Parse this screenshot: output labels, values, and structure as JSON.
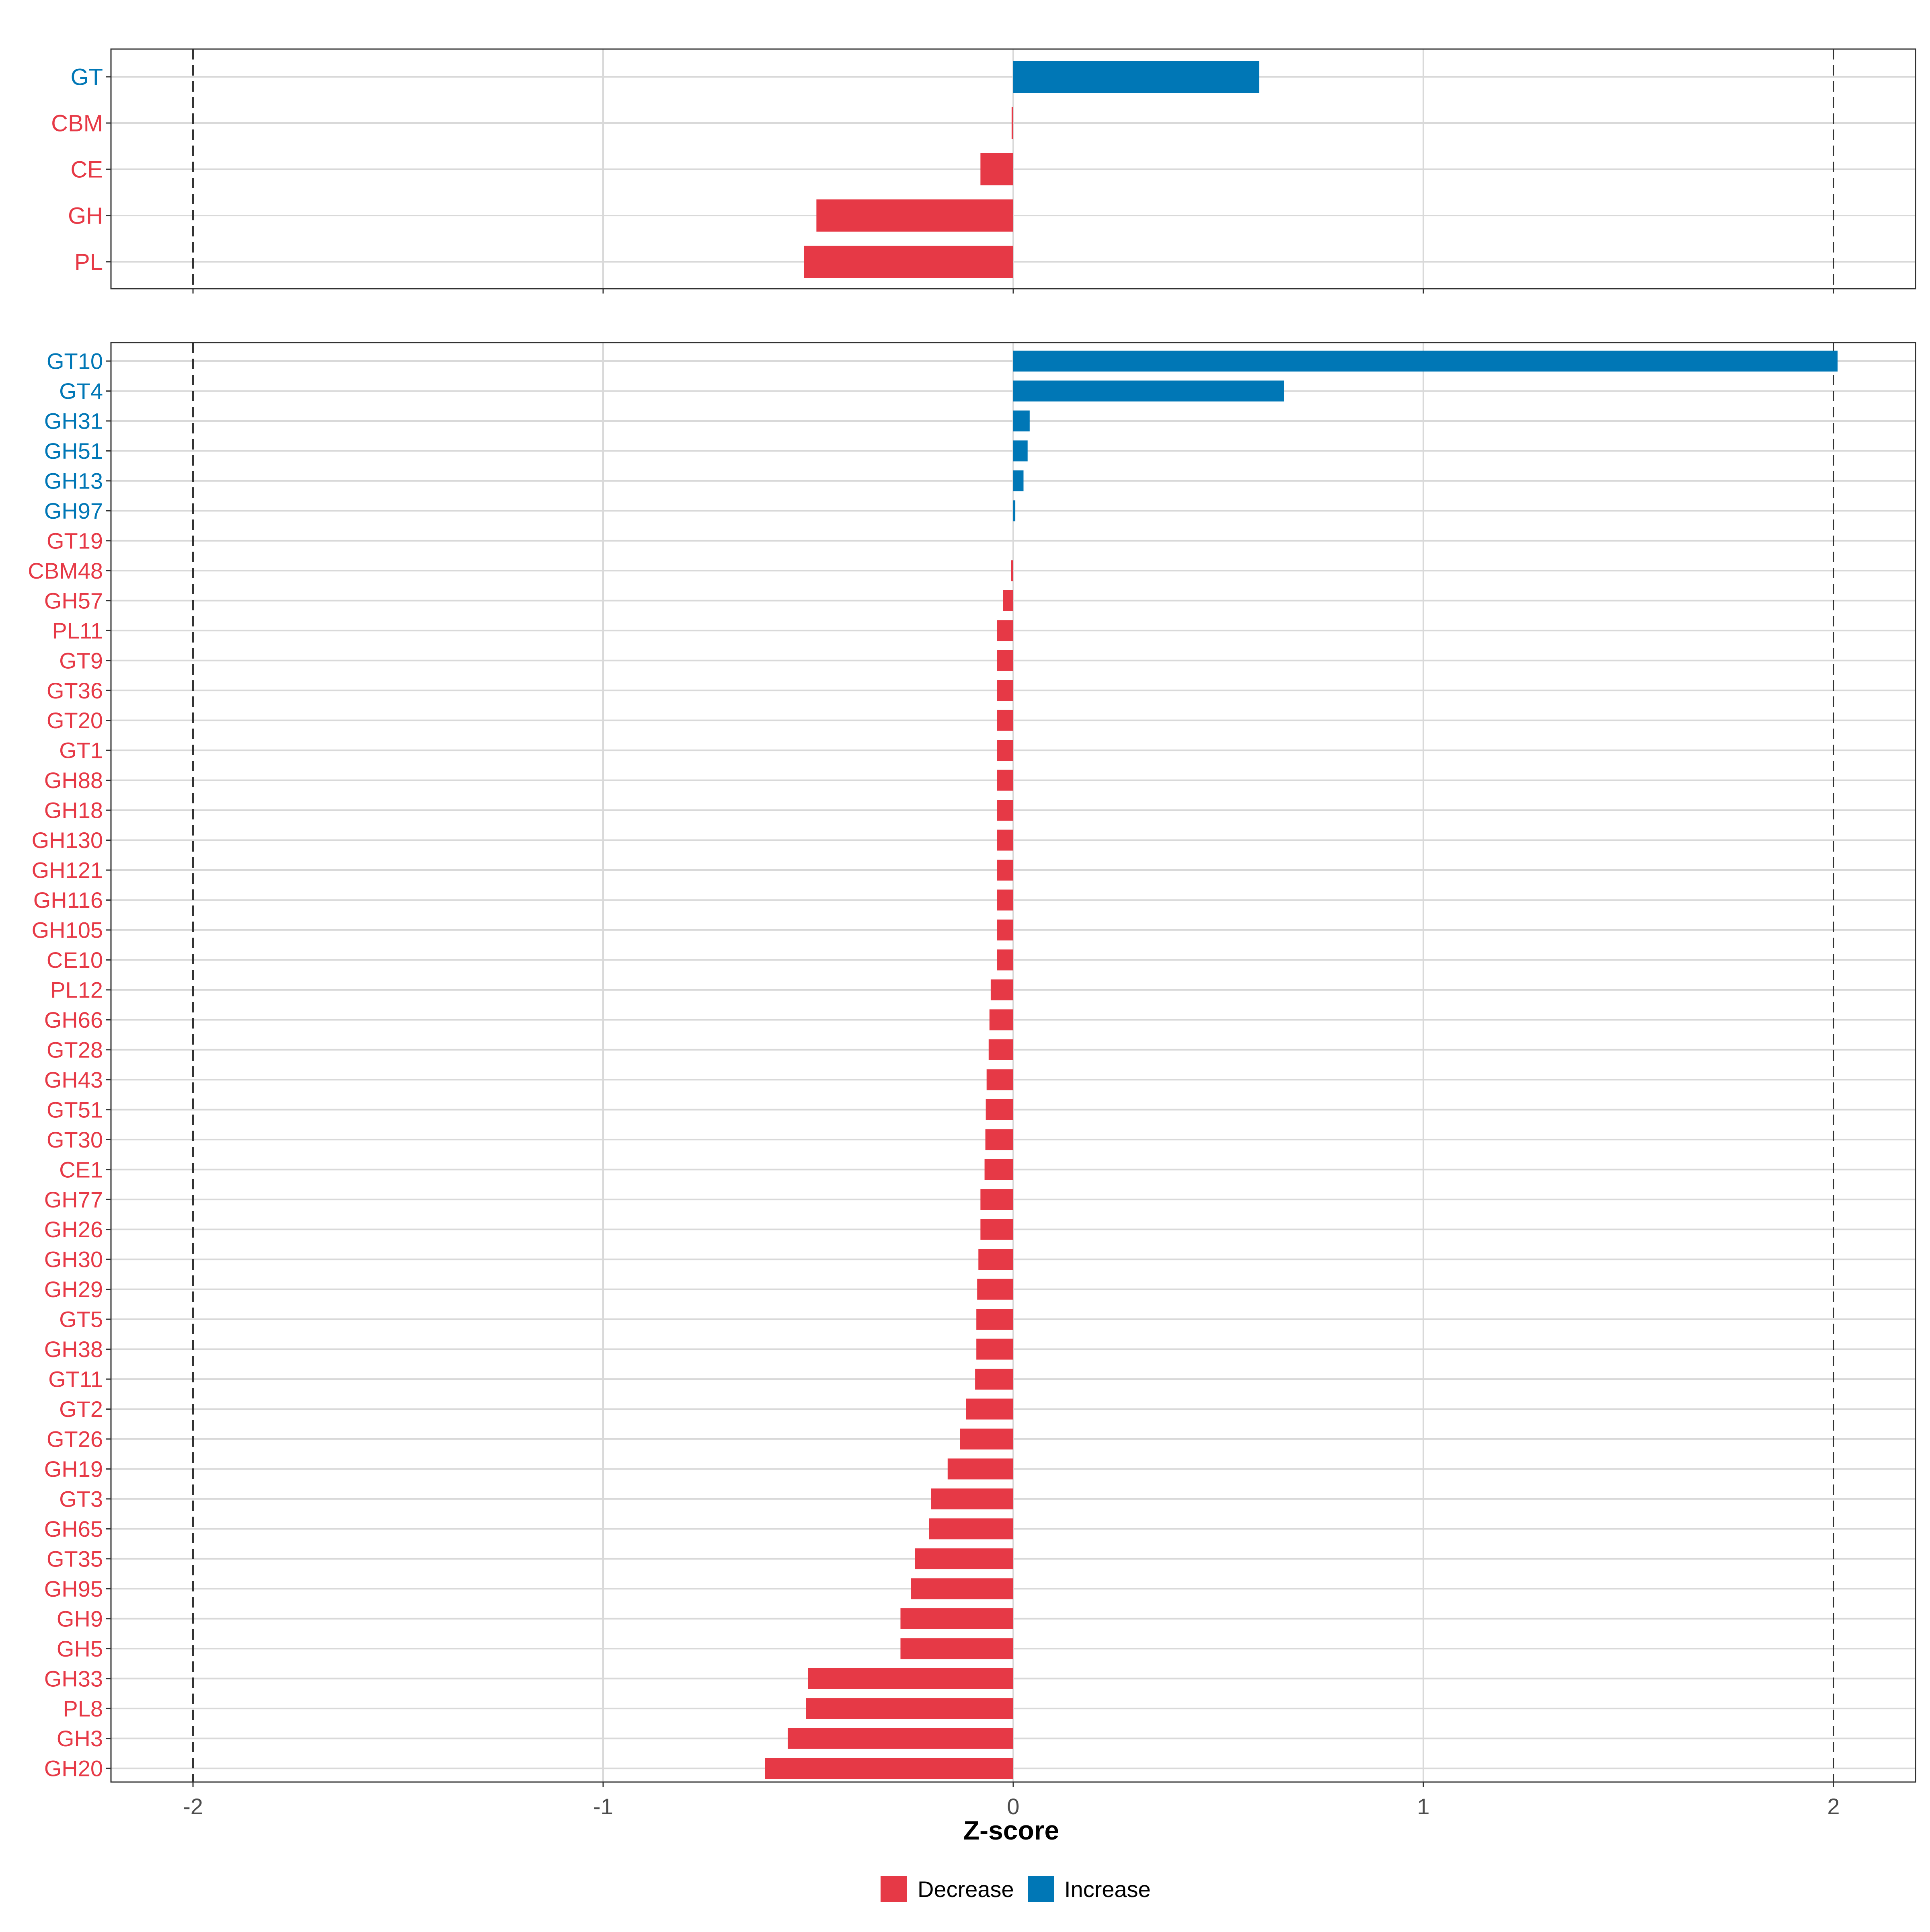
{
  "colors": {
    "decrease": "#E63946",
    "increase": "#0077B6",
    "grid": "#D9D9D9",
    "panel_border": "#333333",
    "ref_line": "#333333",
    "axis_text": "#4D4D4D"
  },
  "chart_data": [
    {
      "type": "bar",
      "orientation": "horizontal",
      "panel": "class",
      "categories": [
        "GT",
        "CBM",
        "CE",
        "GH",
        "PL"
      ],
      "values": [
        0.6,
        -0.004,
        -0.08,
        -0.48,
        -0.51
      ],
      "xlim": [
        -2.2,
        2.2
      ],
      "reference_lines": [
        -2,
        2
      ],
      "xticks": [
        "-2",
        "-1",
        "0",
        "1",
        "2"
      ],
      "xtick_values": [
        -2,
        -1,
        0,
        1,
        2
      ]
    },
    {
      "type": "bar",
      "orientation": "horizontal",
      "panel": "family",
      "categories": [
        "GT10",
        "GT4",
        "GH31",
        "GH51",
        "GH13",
        "GH97",
        "GT19",
        "CBM48",
        "GH57",
        "PL11",
        "GT9",
        "GT36",
        "GT20",
        "GT1",
        "GH88",
        "GH18",
        "GH130",
        "GH121",
        "GH116",
        "GH105",
        "CE10",
        "PL12",
        "GH66",
        "GT28",
        "GH43",
        "GT51",
        "GT30",
        "CE1",
        "GH77",
        "GH26",
        "GH30",
        "GH29",
        "GT5",
        "GH38",
        "GT11",
        "GT2",
        "GT26",
        "GH19",
        "GT3",
        "GH65",
        "GT35",
        "GH95",
        "GH9",
        "GH5",
        "GH33",
        "PL8",
        "GH3",
        "GH20"
      ],
      "values": [
        2.01,
        0.66,
        0.04,
        0.035,
        0.025,
        0.005,
        0.0,
        -0.005,
        -0.025,
        -0.04,
        -0.04,
        -0.04,
        -0.04,
        -0.04,
        -0.04,
        -0.04,
        -0.04,
        -0.04,
        -0.04,
        -0.04,
        -0.04,
        -0.055,
        -0.058,
        -0.06,
        -0.065,
        -0.067,
        -0.068,
        -0.07,
        -0.08,
        -0.08,
        -0.085,
        -0.088,
        -0.09,
        -0.09,
        -0.093,
        -0.115,
        -0.13,
        -0.16,
        -0.2,
        -0.205,
        -0.24,
        -0.25,
        -0.275,
        -0.275,
        -0.5,
        -0.505,
        -0.55,
        -0.605
      ],
      "xlim": [
        -2.2,
        2.2
      ],
      "reference_lines": [
        -2,
        2
      ],
      "xticks": [
        "-2",
        "-1",
        "0",
        "1",
        "2"
      ],
      "xtick_values": [
        -2,
        -1,
        0,
        1,
        2
      ],
      "xlabel": "Z-score"
    }
  ],
  "legend": {
    "decrease_label": "Decrease",
    "increase_label": "Increase"
  }
}
